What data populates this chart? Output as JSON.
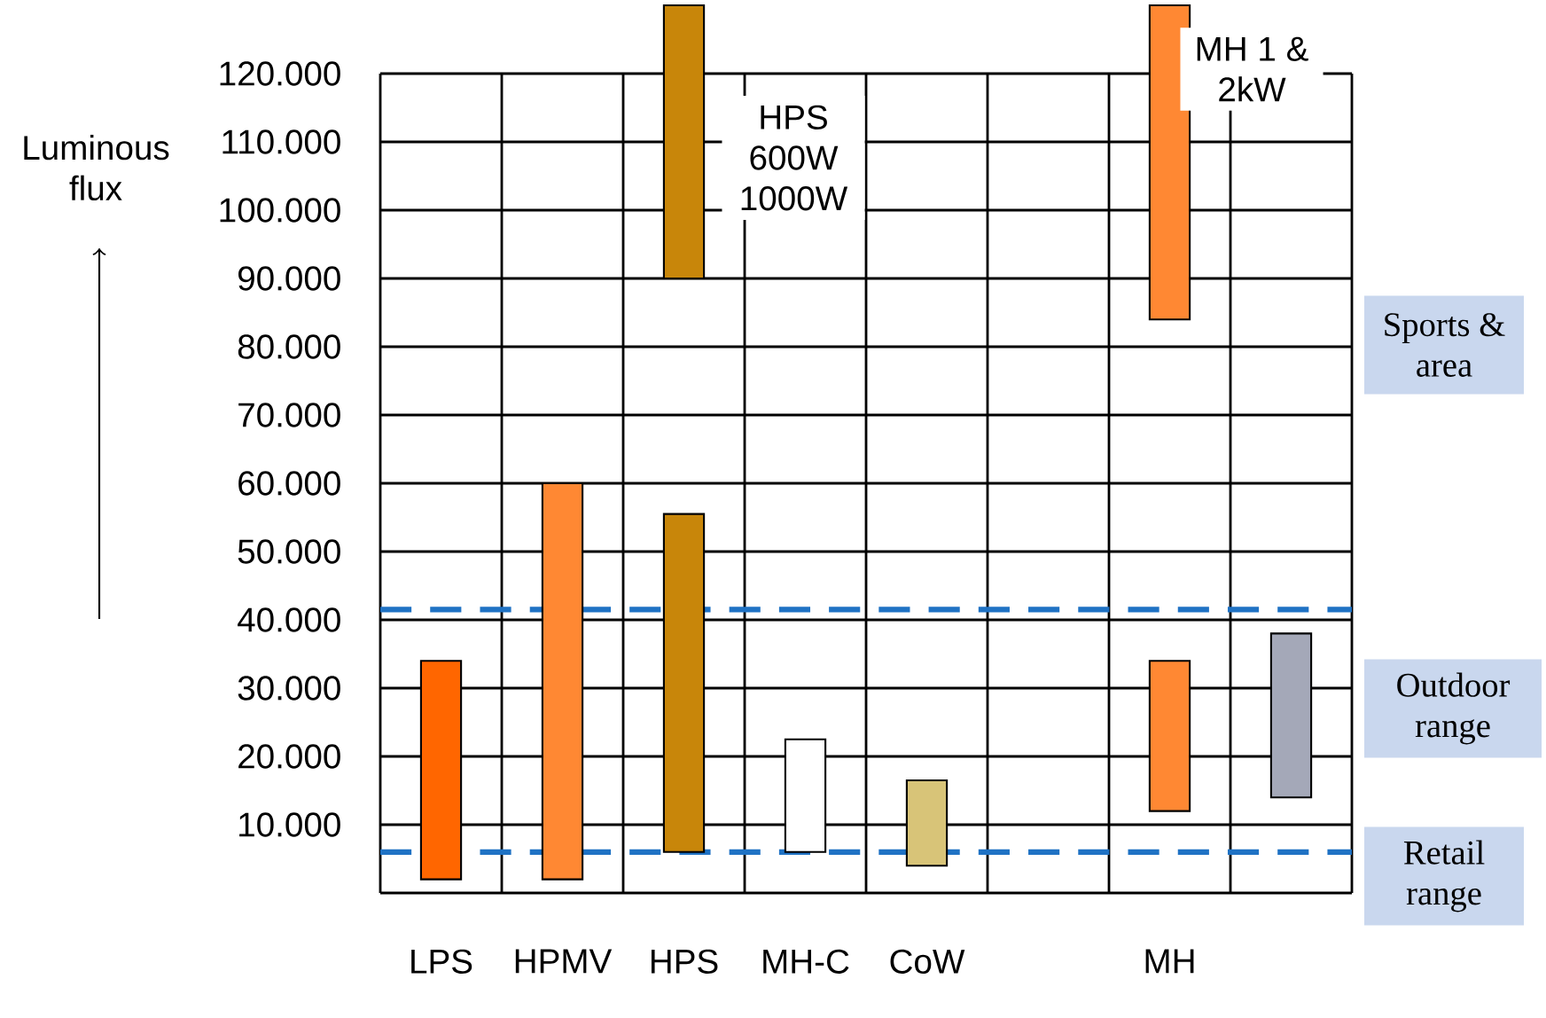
{
  "chart_data": {
    "type": "bar",
    "ylabel": "Luminous flux",
    "categories": [
      "LPS",
      "HPMV",
      "HPS",
      "MH-C",
      "CoW",
      null,
      "MH",
      null
    ],
    "series": [
      {
        "values": [
          32000,
          58000,
          49500,
          16500,
          12500,
          null,
          22000,
          24000
        ],
        "base": [
          2000,
          2000,
          6000,
          6000,
          4000,
          null,
          12000,
          14000
        ],
        "colors": [
          "#ff6600",
          "#ff8833",
          "#c8860a",
          "#ffffff",
          "#d8c478",
          null,
          "#ff8833",
          "#a4a8b8"
        ]
      },
      {
        "values": [
          null,
          null,
          40000,
          null,
          null,
          null,
          46000,
          null
        ],
        "base": [
          null,
          null,
          90000,
          null,
          null,
          null,
          84000,
          null
        ],
        "colors": [
          null,
          null,
          "#c8860a",
          null,
          null,
          null,
          "#ff8833",
          null
        ]
      }
    ],
    "ylim": [
      0,
      130000
    ],
    "yticks": [
      {
        "value": 10000,
        "label": "10.000"
      },
      {
        "value": 20000,
        "label": "20.000"
      },
      {
        "value": 30000,
        "label": "30.000"
      },
      {
        "value": 40000,
        "label": "40.000"
      },
      {
        "value": 50000,
        "label": "50.000"
      },
      {
        "value": 60000,
        "label": "60.000"
      },
      {
        "value": 70000,
        "label": "70.000"
      },
      {
        "value": 80000,
        "label": "80.000"
      },
      {
        "value": 90000,
        "label": "90.000"
      },
      {
        "value": 100000,
        "label": "100.000"
      },
      {
        "value": 110000,
        "label": "110.000"
      },
      {
        "value": 120000,
        "label": "120.000"
      }
    ],
    "grid": "y",
    "ref_lines": [
      {
        "axis": "y",
        "value": 41500,
        "color": "#1f72c4",
        "line_style": "dashed"
      },
      {
        "axis": "y",
        "value": 6000,
        "color": "#1f72c4",
        "line_style": "dashed"
      }
    ],
    "annotations": [
      "HPS 600W 1000W",
      "MH 1 & 2kW",
      "Sports & area",
      "Outdoor range",
      "Retail range"
    ]
  }
}
